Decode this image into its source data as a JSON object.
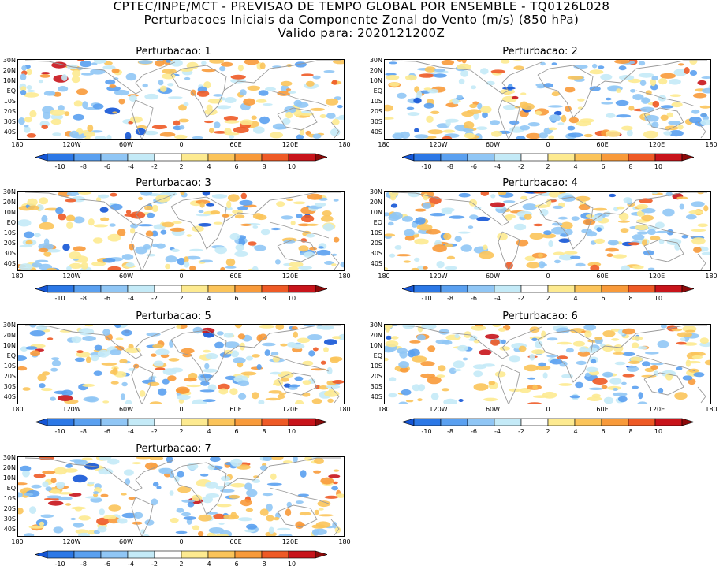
{
  "header": {
    "line1": "CPTEC/INPE/MCT - PREVISAO DE TEMPO GLOBAL POR ENSEMBLE - TQ0126L028",
    "line2": "Perturbacoes Iniciais da Componente Zonal do Vento (m/s) (850 hPa)",
    "line3": "Valido para: 2020121200Z"
  },
  "panels": [
    {
      "title": "Perturbacao: 1"
    },
    {
      "title": "Perturbacao: 2"
    },
    {
      "title": "Perturbacao: 3"
    },
    {
      "title": "Perturbacao: 4"
    },
    {
      "title": "Perturbacao: 5"
    },
    {
      "title": "Perturbacao: 6"
    },
    {
      "title": "Perturbacao: 7"
    }
  ],
  "axes": {
    "lat_labels": [
      "30N",
      "20N",
      "10N",
      "EQ",
      "10S",
      "20S",
      "30S",
      "40S"
    ],
    "lon_labels": [
      "180",
      "120W",
      "60W",
      "0",
      "60E",
      "120E",
      "180"
    ]
  },
  "colorbar": {
    "labels": [
      "-10",
      "-8",
      "-6",
      "-4",
      "-2",
      "2",
      "4",
      "6",
      "8",
      "10"
    ],
    "colors": [
      "#1455d6",
      "#2c78e6",
      "#5aa0f0",
      "#90c6f5",
      "#c4eaf7",
      "#ffffff",
      "#fdea90",
      "#fbc45a",
      "#f89a3a",
      "#ee5a26",
      "#c8141b",
      "#8c0a0a"
    ]
  }
}
